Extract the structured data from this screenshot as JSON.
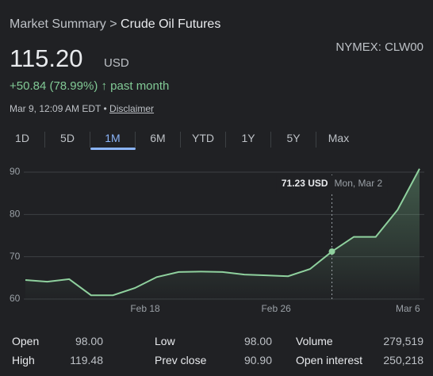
{
  "header": {
    "breadcrumb": "Market Summary",
    "separator": ">",
    "title": "Crude Oil Futures",
    "exchange": "NYMEX: CLW00",
    "price": "115.20",
    "currency": "USD",
    "change": "+50.84 (78.99%)",
    "arrow": "↑",
    "period": "past month",
    "timestamp": "Mar 9, 12:09 AM EDT •",
    "disclaimer": "Disclaimer"
  },
  "tabs": [
    "1D",
    "5D",
    "1M",
    "6M",
    "YTD",
    "1Y",
    "5Y",
    "Max"
  ],
  "selected_tab": "1M",
  "chart_data": {
    "type": "line",
    "x": [
      0,
      1,
      2,
      3,
      4,
      5,
      6,
      7,
      8,
      9,
      10,
      11,
      12,
      13,
      14,
      15,
      16,
      17,
      18
    ],
    "series": [
      {
        "name": "Crude Oil Futures",
        "color": "#8fd19e",
        "values": [
          64.5,
          64.1,
          64.7,
          60.9,
          60.9,
          62.6,
          65.2,
          66.4,
          66.5,
          66.4,
          65.8,
          65.6,
          65.4,
          67.1,
          71.23,
          74.7,
          74.7,
          81.1,
          90.8
        ],
        "value_labels": [
          null,
          null,
          null,
          null,
          null,
          null,
          null,
          null,
          null,
          null,
          null,
          null,
          null,
          null,
          "71.23 USD",
          null,
          null,
          null,
          null
        ]
      }
    ],
    "tooltip_date": "Mon, Mar 2",
    "xlim": [
      0,
      18
    ],
    "xticks": [
      {
        "value": 5.47,
        "label": "Feb 18"
      },
      {
        "value": 11.45,
        "label": "Feb 26"
      },
      {
        "value": 17.47,
        "label": "Mar 6"
      }
    ],
    "ylim": [
      60,
      90
    ],
    "yticks": [
      60,
      70,
      80,
      90
    ],
    "grid": true
  },
  "stats": [
    [
      [
        "Open",
        "98.00"
      ],
      [
        "Low",
        "98.00"
      ],
      [
        "Volume",
        "279,519"
      ]
    ],
    [
      [
        "High",
        "119.48"
      ],
      [
        "Prev close",
        "90.90"
      ],
      [
        "Open interest",
        "250,218"
      ]
    ]
  ]
}
